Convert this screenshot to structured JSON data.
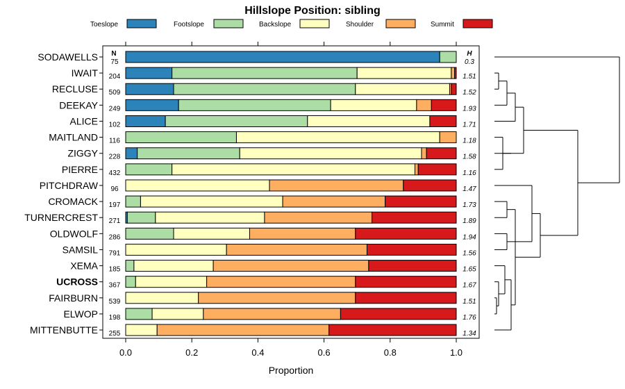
{
  "chart_data": {
    "type": "bar",
    "stacked": true,
    "orientation": "horizontal",
    "title": "Hillslope Position: sibling",
    "xlabel": "Proportion",
    "xlim": [
      0,
      1
    ],
    "x_ticks": [
      "0.0",
      "0.2",
      "0.4",
      "0.6",
      "0.8",
      "1.0"
    ],
    "x_tick_values": [
      0,
      0.2,
      0.4,
      0.6,
      0.8,
      1.0
    ],
    "legend_position": "top",
    "n_header": "N",
    "h_header": "H",
    "series": [
      {
        "name": "Toeslope",
        "color": "#2b83ba"
      },
      {
        "name": "Footslope",
        "color": "#abdda4"
      },
      {
        "name": "Backslope",
        "color": "#ffffbf"
      },
      {
        "name": "Shoulder",
        "color": "#fdae61"
      },
      {
        "name": "Summit",
        "color": "#d7191c"
      }
    ],
    "categories": [
      {
        "name": "SODAWELLS",
        "n": "75",
        "h": "0.3",
        "bold": false,
        "values": [
          0.95,
          0.05,
          0,
          0,
          0
        ]
      },
      {
        "name": "IWAIT",
        "n": "204",
        "h": "1.51",
        "bold": false,
        "values": [
          0.14,
          0.56,
          0.285,
          0.01,
          0.005
        ]
      },
      {
        "name": "RECLUSE",
        "n": "509",
        "h": "1.52",
        "bold": false,
        "values": [
          0.145,
          0.55,
          0.285,
          0.005,
          0.015
        ]
      },
      {
        "name": "DEEKAY",
        "n": "249",
        "h": "1.93",
        "bold": false,
        "values": [
          0.16,
          0.46,
          0.26,
          0.045,
          0.075
        ]
      },
      {
        "name": "ALICE",
        "n": "102",
        "h": "1.71",
        "bold": false,
        "values": [
          0.12,
          0.43,
          0.37,
          0,
          0.08
        ]
      },
      {
        "name": "MAITLAND",
        "n": "116",
        "h": "1.18",
        "bold": false,
        "values": [
          0,
          0.335,
          0.615,
          0.05,
          0
        ]
      },
      {
        "name": "ZIGGY",
        "n": "228",
        "h": "1.58",
        "bold": false,
        "values": [
          0.035,
          0.31,
          0.55,
          0.015,
          0.09
        ]
      },
      {
        "name": "PIERRE",
        "n": "432",
        "h": "1.16",
        "bold": false,
        "values": [
          0,
          0.14,
          0.735,
          0.01,
          0.115
        ]
      },
      {
        "name": "PITCHDRAW",
        "n": "96",
        "h": "1.47",
        "bold": false,
        "values": [
          0,
          0,
          0.435,
          0.405,
          0.16
        ]
      },
      {
        "name": "CROMACK",
        "n": "197",
        "h": "1.73",
        "bold": false,
        "values": [
          0,
          0.045,
          0.43,
          0.31,
          0.215
        ]
      },
      {
        "name": "TURNERCREST",
        "n": "271",
        "h": "1.89",
        "bold": false,
        "values": [
          0.005,
          0.085,
          0.33,
          0.325,
          0.255
        ]
      },
      {
        "name": "OLDWOLF",
        "n": "286",
        "h": "1.94",
        "bold": false,
        "values": [
          0,
          0.145,
          0.23,
          0.32,
          0.305
        ]
      },
      {
        "name": "SAMSIL",
        "n": "791",
        "h": "1.56",
        "bold": false,
        "values": [
          0,
          0,
          0.305,
          0.425,
          0.27
        ]
      },
      {
        "name": "XEMA",
        "n": "185",
        "h": "1.65",
        "bold": false,
        "values": [
          0,
          0.025,
          0.24,
          0.47,
          0.265
        ]
      },
      {
        "name": "UCROSS",
        "n": "367",
        "h": "1.67",
        "bold": true,
        "values": [
          0,
          0.03,
          0.215,
          0.45,
          0.305
        ]
      },
      {
        "name": "FAIRBURN",
        "n": "539",
        "h": "1.51",
        "bold": false,
        "values": [
          0,
          0,
          0.22,
          0.475,
          0.305
        ]
      },
      {
        "name": "ELWOP",
        "n": "198",
        "h": "1.76",
        "bold": false,
        "values": [
          0,
          0.08,
          0.155,
          0.415,
          0.35
        ]
      },
      {
        "name": "MITTENBUTTE",
        "n": "255",
        "h": "1.34",
        "bold": false,
        "values": [
          0,
          0,
          0.095,
          0.52,
          0.385
        ]
      }
    ],
    "dendrogram": {
      "description": "hierarchical clustering of soil series by hillslope position profile",
      "merges": [
        [
          1,
          2,
          0.02
        ],
        [
          18,
          3,
          0.06
        ],
        [
          19,
          4,
          0.1
        ],
        [
          7,
          5,
          0.04
        ],
        [
          21,
          6,
          0.08
        ],
        [
          20,
          22,
          0.14
        ],
        [
          15,
          16,
          0.01
        ],
        [
          14,
          24,
          0.02
        ],
        [
          13,
          25,
          0.05
        ],
        [
          26,
          17,
          0.08
        ],
        [
          9,
          10,
          0.06
        ],
        [
          11,
          12,
          0.06
        ],
        [
          27,
          28,
          0.1
        ],
        [
          29,
          8,
          0.18
        ],
        [
          30,
          31,
          0.22
        ],
        [
          23,
          32,
          0.4
        ],
        [
          0,
          33,
          0.6
        ]
      ]
    }
  }
}
